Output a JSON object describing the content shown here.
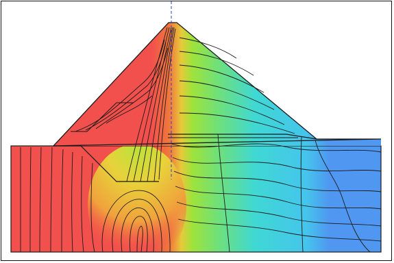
{
  "figure": {
    "kind": "dam seepage contour plot",
    "colors": {
      "high_head": "#f2504c",
      "mid_high": "#e8c93a",
      "mid": "#9fe33a",
      "mid_low": "#3fd8d4",
      "low_head": "#4f97f0",
      "contour_line": "#1a1a1a",
      "axis_line": "#2a3fd8"
    },
    "parts": [
      "dam-body",
      "foundation",
      "clay-core",
      "contour-lines",
      "symmetry-axis"
    ]
  }
}
